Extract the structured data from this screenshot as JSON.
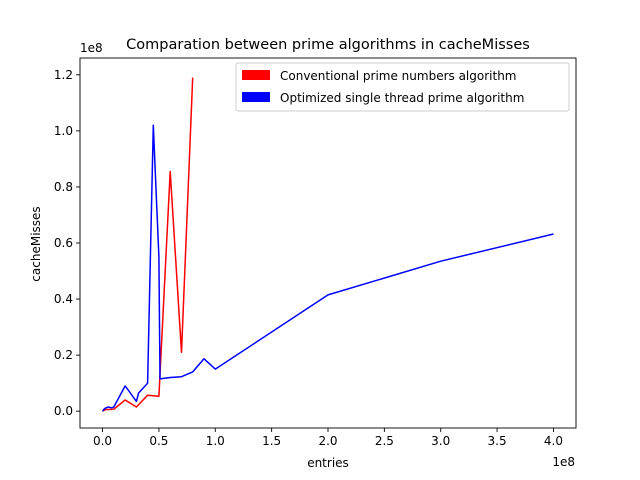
{
  "chart_data": {
    "type": "line",
    "title": "Comparation between prime algorithms in cacheMisses",
    "xlabel": "entries",
    "ylabel": "cacheMisses",
    "x_offset_label": "1e8",
    "y_offset_label": "1e8",
    "xlim": [
      -0.2,
      4.2
    ],
    "ylim": [
      -0.06,
      1.26
    ],
    "x_ticks": [
      0.0,
      0.5,
      1.0,
      1.5,
      2.0,
      2.5,
      3.0,
      3.5,
      4.0
    ],
    "x_tick_labels": [
      "0.0",
      "0.5",
      "1.0",
      "1.5",
      "2.0",
      "2.5",
      "3.0",
      "3.5",
      "4.0"
    ],
    "y_ticks": [
      0.0,
      0.2,
      0.4,
      0.6,
      0.8,
      1.0,
      1.2
    ],
    "y_tick_labels": [
      "0.0",
      "0.2",
      "0.4",
      "0.6",
      "0.8",
      "1.0",
      "1.2"
    ],
    "grid": false,
    "legend_position": "top-right",
    "series": [
      {
        "name": "Conventional prime numbers algorithm",
        "color": "#ff0000",
        "x": [
          0.0,
          0.02,
          0.05,
          0.1,
          0.2,
          0.3,
          0.4,
          0.5,
          0.6,
          0.7,
          0.8
        ],
        "y": [
          0.0,
          0.005,
          0.006,
          0.007,
          0.04,
          0.015,
          0.057,
          0.053,
          0.855,
          0.21,
          1.19
        ]
      },
      {
        "name": "Optimized single thread prime algorithm",
        "color": "#0000ff",
        "x": [
          0.0,
          0.02,
          0.05,
          0.08,
          0.1,
          0.2,
          0.22,
          0.3,
          0.32,
          0.4,
          0.45,
          0.5,
          0.51,
          0.6,
          0.7,
          0.8,
          0.9,
          1.0,
          2.0,
          3.0,
          4.0
        ],
        "y": [
          0.0,
          0.01,
          0.015,
          0.012,
          0.015,
          0.09,
          0.08,
          0.035,
          0.065,
          0.1,
          1.02,
          0.55,
          0.115,
          0.12,
          0.123,
          0.14,
          0.187,
          0.15,
          0.415,
          0.535,
          0.632
        ]
      }
    ]
  }
}
